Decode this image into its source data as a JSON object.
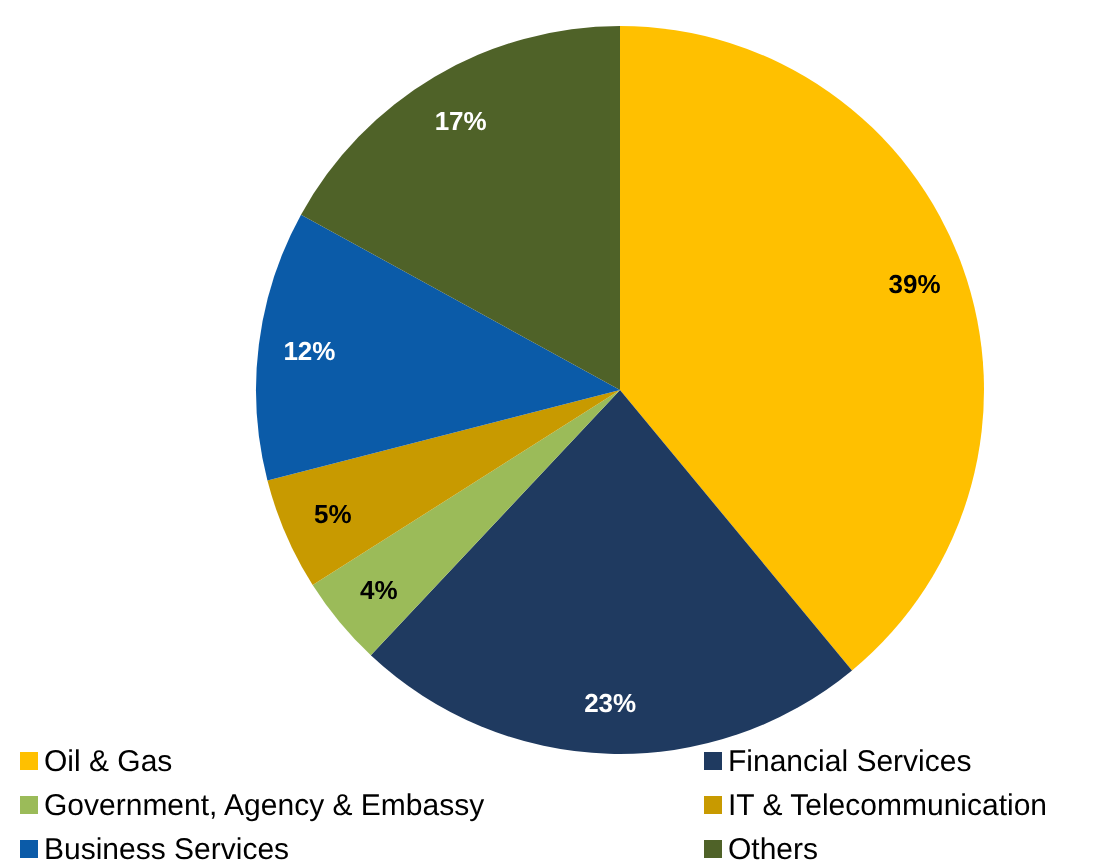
{
  "chart_data": {
    "type": "pie",
    "categories": [
      "Oil & Gas",
      "Financial Services",
      "Government, Agency & Embassy",
      "IT & Telecommunication",
      "Business Services",
      "Others"
    ],
    "values": [
      39,
      23,
      4,
      5,
      12,
      17
    ],
    "colors": [
      "#ffc000",
      "#1f3a60",
      "#9bbb59",
      "#c89a00",
      "#0b5ba8",
      "#4f6228"
    ],
    "value_labels": [
      "39%",
      "23%",
      "4%",
      "5%",
      "12%",
      "17%"
    ],
    "legend": "bottom"
  }
}
